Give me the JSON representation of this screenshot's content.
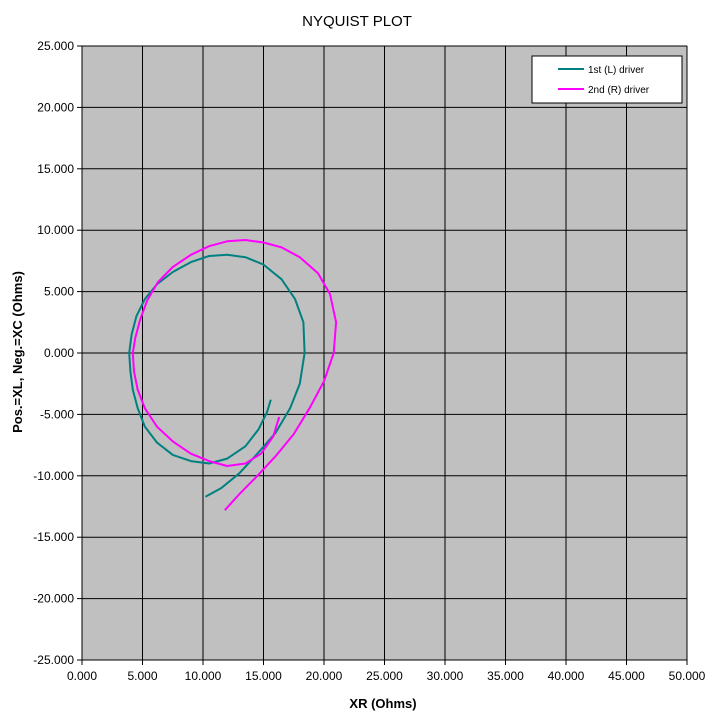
{
  "chart_data": {
    "type": "line",
    "title": "NYQUIST PLOT",
    "xlabel": "XR (Ohms)",
    "ylabel": "Pos.=XL, Neg.=XC (Ohms)",
    "xlim": [
      0,
      50
    ],
    "ylim": [
      -25,
      25
    ],
    "x_ticks": [
      "0.000",
      "5.000",
      "10.000",
      "15.000",
      "20.000",
      "25.000",
      "30.000",
      "35.000",
      "40.000",
      "45.000",
      "50.000"
    ],
    "y_ticks": [
      "25.000",
      "20.000",
      "15.000",
      "10.000",
      "5.000",
      "0.000",
      "-5.000",
      "-10.000",
      "-15.000",
      "-20.000",
      "-25.000"
    ],
    "grid": true,
    "legend_position": "top-right",
    "series": [
      {
        "name": "1st (L) driver",
        "color": "#008080",
        "x": [
          10.2,
          11.5,
          13,
          14.5,
          16,
          17.2,
          18,
          18.4,
          18.3,
          17.6,
          16.5,
          15,
          13.5,
          12,
          10.5,
          9,
          7.5,
          6.2,
          5.2,
          4.5,
          4.1,
          3.9,
          4.0,
          4.2,
          4.6,
          5.2,
          6.2,
          7.5,
          9,
          10.5,
          12,
          13.5,
          14.6,
          15.3,
          15.6
        ],
        "y": [
          -11.7,
          -11,
          -9.8,
          -8.2,
          -6.5,
          -4.5,
          -2.5,
          0,
          2.5,
          4.4,
          6,
          7.2,
          7.8,
          8,
          7.9,
          7.4,
          6.6,
          5.6,
          4.4,
          3,
          1.5,
          0,
          -1.5,
          -3,
          -4.5,
          -6,
          -7.3,
          -8.3,
          -8.8,
          -9,
          -8.6,
          -7.6,
          -6.2,
          -4.8,
          -3.8
        ]
      },
      {
        "name": "2nd (R) driver",
        "color": "#ff00ff",
        "x": [
          11.8,
          13,
          14.5,
          16,
          17.5,
          18.8,
          20,
          20.8,
          21,
          20.5,
          19.5,
          18,
          16.5,
          15,
          13.5,
          12,
          10.5,
          9,
          7.5,
          6.3,
          5.4,
          4.8,
          4.4,
          4.2,
          4.3,
          4.6,
          5.2,
          6.2,
          7.5,
          9,
          10.5,
          12,
          13.5,
          14.8,
          15.8,
          16.3
        ],
        "y": [
          -12.8,
          -11.5,
          -10,
          -8.4,
          -6.6,
          -4.5,
          -2.3,
          0,
          2.5,
          4.8,
          6.5,
          7.8,
          8.6,
          9,
          9.2,
          9.1,
          8.7,
          8,
          7,
          5.8,
          4.3,
          2.7,
          1.2,
          0,
          -1.5,
          -3,
          -4.5,
          -6,
          -7.2,
          -8.2,
          -8.8,
          -9.2,
          -9.0,
          -8.2,
          -6.8,
          -5.2
        ]
      }
    ]
  }
}
